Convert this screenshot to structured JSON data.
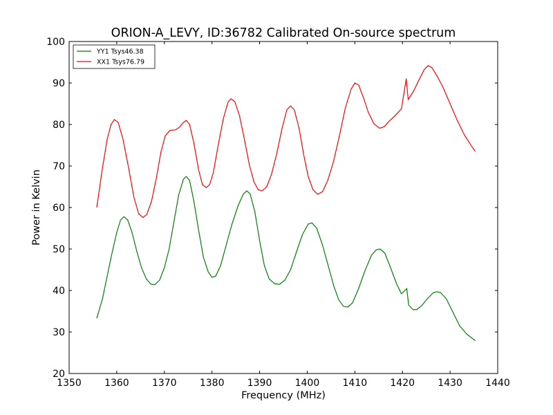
{
  "chart_data": {
    "type": "line",
    "title": "ORION-A_LEVY, ID:36782 Calibrated On-source spectrum",
    "xlabel": "Frequency (MHz)",
    "ylabel": "Power in Kelvin",
    "xlim": [
      1350,
      1440
    ],
    "ylim": [
      20,
      100
    ],
    "xticks": [
      1350,
      1360,
      1370,
      1380,
      1390,
      1400,
      1410,
      1420,
      1430,
      1440
    ],
    "yticks": [
      20,
      30,
      40,
      50,
      60,
      70,
      80,
      90,
      100
    ],
    "grid": false,
    "legend_position": "top-left",
    "series": [
      {
        "name": "YY1 Tsys46.38",
        "color": "#008000",
        "points": [
          [
            1355.8,
            33.3
          ],
          [
            1357.0,
            38.0
          ],
          [
            1358.0,
            43.5
          ],
          [
            1359.0,
            49.0
          ],
          [
            1360.0,
            54.0
          ],
          [
            1360.8,
            57.0
          ],
          [
            1361.5,
            57.8
          ],
          [
            1362.3,
            57.0
          ],
          [
            1363.2,
            54.0
          ],
          [
            1364.2,
            49.5
          ],
          [
            1365.2,
            45.5
          ],
          [
            1366.2,
            42.8
          ],
          [
            1367.2,
            41.5
          ],
          [
            1368.0,
            41.4
          ],
          [
            1369.0,
            42.5
          ],
          [
            1370.0,
            45.5
          ],
          [
            1371.0,
            50.0
          ],
          [
            1372.0,
            56.5
          ],
          [
            1373.0,
            63.0
          ],
          [
            1374.0,
            66.8
          ],
          [
            1374.6,
            67.5
          ],
          [
            1375.3,
            66.5
          ],
          [
            1376.2,
            61.5
          ],
          [
            1377.2,
            54.5
          ],
          [
            1378.2,
            48.0
          ],
          [
            1379.2,
            44.5
          ],
          [
            1380.0,
            43.2
          ],
          [
            1380.8,
            43.5
          ],
          [
            1381.8,
            46.0
          ],
          [
            1383.0,
            51.0
          ],
          [
            1384.2,
            56.0
          ],
          [
            1385.5,
            60.5
          ],
          [
            1386.6,
            63.3
          ],
          [
            1387.3,
            64.0
          ],
          [
            1388.0,
            63.3
          ],
          [
            1389.0,
            59.0
          ],
          [
            1390.0,
            52.0
          ],
          [
            1391.0,
            46.0
          ],
          [
            1392.0,
            42.8
          ],
          [
            1393.2,
            41.6
          ],
          [
            1394.2,
            41.5
          ],
          [
            1395.3,
            42.5
          ],
          [
            1396.5,
            45.0
          ],
          [
            1397.8,
            49.5
          ],
          [
            1399.0,
            53.5
          ],
          [
            1400.2,
            56.0
          ],
          [
            1401.0,
            56.3
          ],
          [
            1402.0,
            55.0
          ],
          [
            1403.2,
            51.0
          ],
          [
            1404.4,
            46.0
          ],
          [
            1405.6,
            41.0
          ],
          [
            1406.6,
            37.8
          ],
          [
            1407.6,
            36.2
          ],
          [
            1408.5,
            36.0
          ],
          [
            1409.5,
            37.0
          ],
          [
            1410.8,
            40.5
          ],
          [
            1412.2,
            45.0
          ],
          [
            1413.5,
            48.5
          ],
          [
            1414.5,
            49.8
          ],
          [
            1415.3,
            50.0
          ],
          [
            1416.3,
            49.0
          ],
          [
            1417.5,
            45.5
          ],
          [
            1418.8,
            41.5
          ],
          [
            1419.8,
            39.2
          ],
          [
            1420.5,
            40.0
          ],
          [
            1420.9,
            40.5
          ],
          [
            1421.3,
            36.5
          ],
          [
            1422.2,
            35.4
          ],
          [
            1423.0,
            35.4
          ],
          [
            1424.0,
            36.3
          ],
          [
            1425.2,
            38.0
          ],
          [
            1426.5,
            39.5
          ],
          [
            1427.2,
            39.7
          ],
          [
            1428.0,
            39.5
          ],
          [
            1429.2,
            38.0
          ],
          [
            1430.5,
            35.0
          ],
          [
            1432.0,
            31.5
          ],
          [
            1433.5,
            29.5
          ],
          [
            1435.3,
            27.9
          ]
        ]
      },
      {
        "name": "XX1 Tsys76.79",
        "color": "#ff0000",
        "points": [
          [
            1355.8,
            60.0
          ],
          [
            1357.0,
            69.5
          ],
          [
            1358.0,
            76.5
          ],
          [
            1358.8,
            80.0
          ],
          [
            1359.5,
            81.2
          ],
          [
            1360.3,
            80.5
          ],
          [
            1361.3,
            76.5
          ],
          [
            1362.5,
            69.5
          ],
          [
            1363.6,
            62.5
          ],
          [
            1364.6,
            58.5
          ],
          [
            1365.5,
            57.6
          ],
          [
            1366.3,
            58.3
          ],
          [
            1367.3,
            61.5
          ],
          [
            1368.3,
            67.0
          ],
          [
            1369.3,
            73.5
          ],
          [
            1370.2,
            77.3
          ],
          [
            1371.2,
            78.6
          ],
          [
            1372.3,
            78.7
          ],
          [
            1373.2,
            79.4
          ],
          [
            1374.0,
            80.5
          ],
          [
            1374.6,
            81.0
          ],
          [
            1375.3,
            80.0
          ],
          [
            1376.2,
            75.5
          ],
          [
            1377.2,
            69.0
          ],
          [
            1378.0,
            65.5
          ],
          [
            1378.8,
            64.8
          ],
          [
            1379.5,
            65.5
          ],
          [
            1380.3,
            68.5
          ],
          [
            1381.3,
            75.0
          ],
          [
            1382.4,
            81.5
          ],
          [
            1383.4,
            85.5
          ],
          [
            1384.0,
            86.2
          ],
          [
            1384.8,
            85.5
          ],
          [
            1385.8,
            82.0
          ],
          [
            1386.8,
            76.5
          ],
          [
            1387.8,
            70.5
          ],
          [
            1388.8,
            66.2
          ],
          [
            1389.7,
            64.3
          ],
          [
            1390.5,
            64.0
          ],
          [
            1391.5,
            65.0
          ],
          [
            1392.5,
            68.0
          ],
          [
            1393.6,
            73.0
          ],
          [
            1394.7,
            79.0
          ],
          [
            1395.7,
            83.5
          ],
          [
            1396.5,
            84.5
          ],
          [
            1397.3,
            83.5
          ],
          [
            1398.3,
            79.0
          ],
          [
            1399.3,
            72.5
          ],
          [
            1400.2,
            67.5
          ],
          [
            1401.2,
            64.3
          ],
          [
            1402.2,
            63.2
          ],
          [
            1403.2,
            63.8
          ],
          [
            1404.3,
            66.5
          ],
          [
            1405.5,
            71.0
          ],
          [
            1406.8,
            77.5
          ],
          [
            1408.0,
            84.0
          ],
          [
            1409.2,
            88.5
          ],
          [
            1410.0,
            90.0
          ],
          [
            1410.8,
            89.5
          ],
          [
            1411.8,
            86.5
          ],
          [
            1412.8,
            83.0
          ],
          [
            1414.0,
            80.2
          ],
          [
            1415.2,
            79.1
          ],
          [
            1416.2,
            79.5
          ],
          [
            1417.2,
            80.8
          ],
          [
            1418.5,
            82.2
          ],
          [
            1419.8,
            83.8
          ],
          [
            1420.3,
            87.5
          ],
          [
            1420.8,
            91.0
          ],
          [
            1421.2,
            86.0
          ],
          [
            1422.3,
            88.0
          ],
          [
            1423.5,
            90.8
          ],
          [
            1424.6,
            93.3
          ],
          [
            1425.4,
            94.2
          ],
          [
            1426.2,
            93.7
          ],
          [
            1427.2,
            91.8
          ],
          [
            1428.5,
            89.0
          ],
          [
            1430.0,
            85.0
          ],
          [
            1431.5,
            81.0
          ],
          [
            1433.0,
            77.5
          ],
          [
            1434.5,
            74.8
          ],
          [
            1435.3,
            73.5
          ]
        ]
      }
    ]
  }
}
